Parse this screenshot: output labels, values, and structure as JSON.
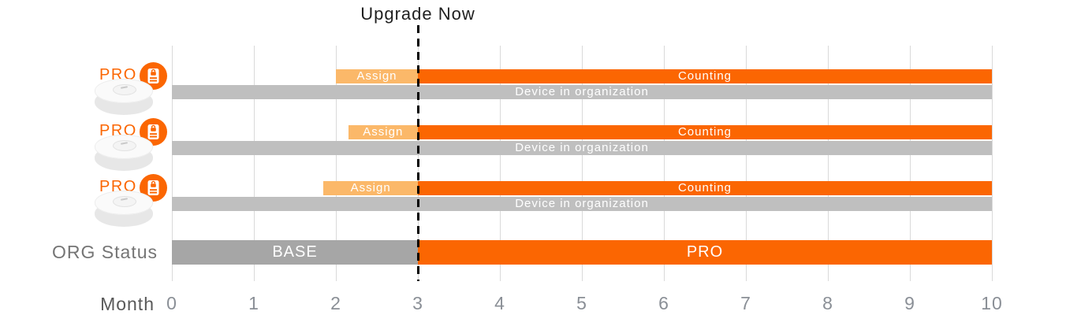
{
  "colors": {
    "counting": "#FB6602",
    "assign": "#FBB869",
    "device_bar": "#BFBFBF",
    "base": "#A6A6A6",
    "grid": "#D9D9D9",
    "axis_text": "#8A8F96",
    "label_text": "#595959",
    "org_label_text": "#757575",
    "title_text": "#1F1F1F",
    "upgrade_line": "#000000"
  },
  "icon": {
    "pro_label": "PRO",
    "badge_icon": "id-badge-icon",
    "device_icon": "sensor-puck-icon"
  },
  "chart_data": {
    "type": "gantt-bar-timeline",
    "title": "Upgrade Now",
    "xlabel": "Month",
    "xlim": [
      0,
      10
    ],
    "xticks": [
      0,
      1,
      2,
      3,
      4,
      5,
      6,
      7,
      8,
      9,
      10
    ],
    "grid": true,
    "legend": false,
    "upgrade_line": {
      "label": "Upgrade Now",
      "month": 3,
      "style": "dashed-black-vertical"
    },
    "device_rows": [
      {
        "icon_label": "PRO",
        "assign": {
          "label": "Assign",
          "start": 2.0,
          "end": 3
        },
        "counting": {
          "label": "Counting",
          "start": 3,
          "end": 10
        },
        "device": {
          "label": "Device in organization",
          "start": 0,
          "end": 10
        }
      },
      {
        "icon_label": "PRO",
        "assign": {
          "label": "Assign",
          "start": 2.15,
          "end": 3
        },
        "counting": {
          "label": "Counting",
          "start": 3,
          "end": 10
        },
        "device": {
          "label": "Device in organization",
          "start": 0,
          "end": 10
        }
      },
      {
        "icon_label": "PRO",
        "assign": {
          "label": "Assign",
          "start": 1.85,
          "end": 3
        },
        "counting": {
          "label": "Counting",
          "start": 3,
          "end": 10
        },
        "device": {
          "label": "Device in organization",
          "start": 0,
          "end": 10
        }
      }
    ],
    "org_row": {
      "label": "ORG Status",
      "segments": [
        {
          "label": "BASE",
          "start": 0,
          "end": 3,
          "color_key": "base"
        },
        {
          "label": "PRO",
          "start": 3,
          "end": 10,
          "color_key": "counting"
        }
      ]
    }
  }
}
